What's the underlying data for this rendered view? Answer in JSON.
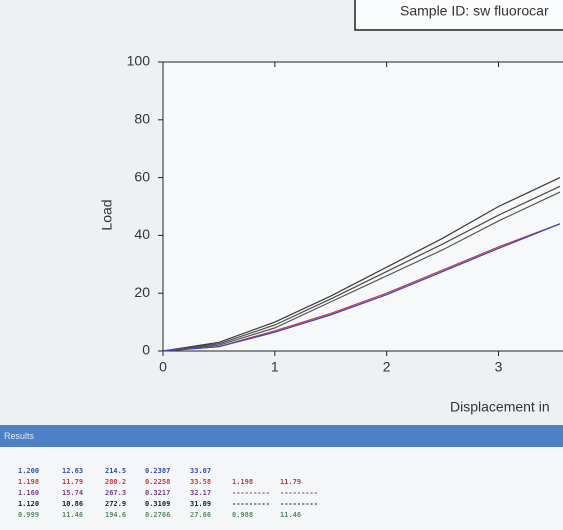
{
  "chart_data": {
    "type": "line",
    "title": "Sample ID: sw fluorocar",
    "x_label": "Displacement in",
    "y_label": "Load",
    "x": [
      0,
      0.5,
      1,
      1.5,
      2,
      2.5,
      3,
      3.55
    ],
    "series": [
      {
        "color": "#3a3a3a",
        "values": [
          0,
          3,
          10,
          19,
          29,
          39,
          50,
          60
        ]
      },
      {
        "color": "#4a4a4a",
        "values": [
          0,
          2.5,
          9,
          18,
          27.5,
          37,
          47,
          57
        ]
      },
      {
        "color": "#555555",
        "values": [
          0,
          2,
          8,
          17,
          26,
          35,
          45,
          55
        ]
      },
      {
        "color": "#c0394a",
        "values": [
          0,
          1.5,
          7,
          13,
          20,
          28,
          36,
          44
        ]
      },
      {
        "color": "#3a45b0",
        "values": [
          0,
          1.5,
          6.5,
          12.5,
          19.5,
          27.5,
          35.5,
          44
        ]
      }
    ],
    "xlim": [
      0,
      3.55
    ],
    "ylim": [
      0,
      100
    ],
    "xticks": [
      0,
      1,
      2,
      3
    ],
    "yticks": [
      0,
      20,
      40,
      60,
      80,
      100
    ]
  },
  "results_table": {
    "title": "Results",
    "rows": [
      [
        "1.200",
        "12.63",
        "214.5",
        "0.2387",
        "33.07"
      ],
      [
        "1.198",
        "11.79",
        "280.2",
        "0.2258",
        "33.58",
        "1.198",
        "11.79"
      ],
      [
        "1.160",
        "15.74",
        "267.3",
        "0.3217",
        "32.17",
        "---------",
        "---------"
      ],
      [
        "1.120",
        "10.86",
        "272.9",
        "0.3109",
        "31.09",
        "---------",
        "---------"
      ],
      [
        "0.999",
        "11.46",
        "194.6",
        "0.2766",
        "27.66",
        "0.988",
        "11.46"
      ]
    ]
  }
}
